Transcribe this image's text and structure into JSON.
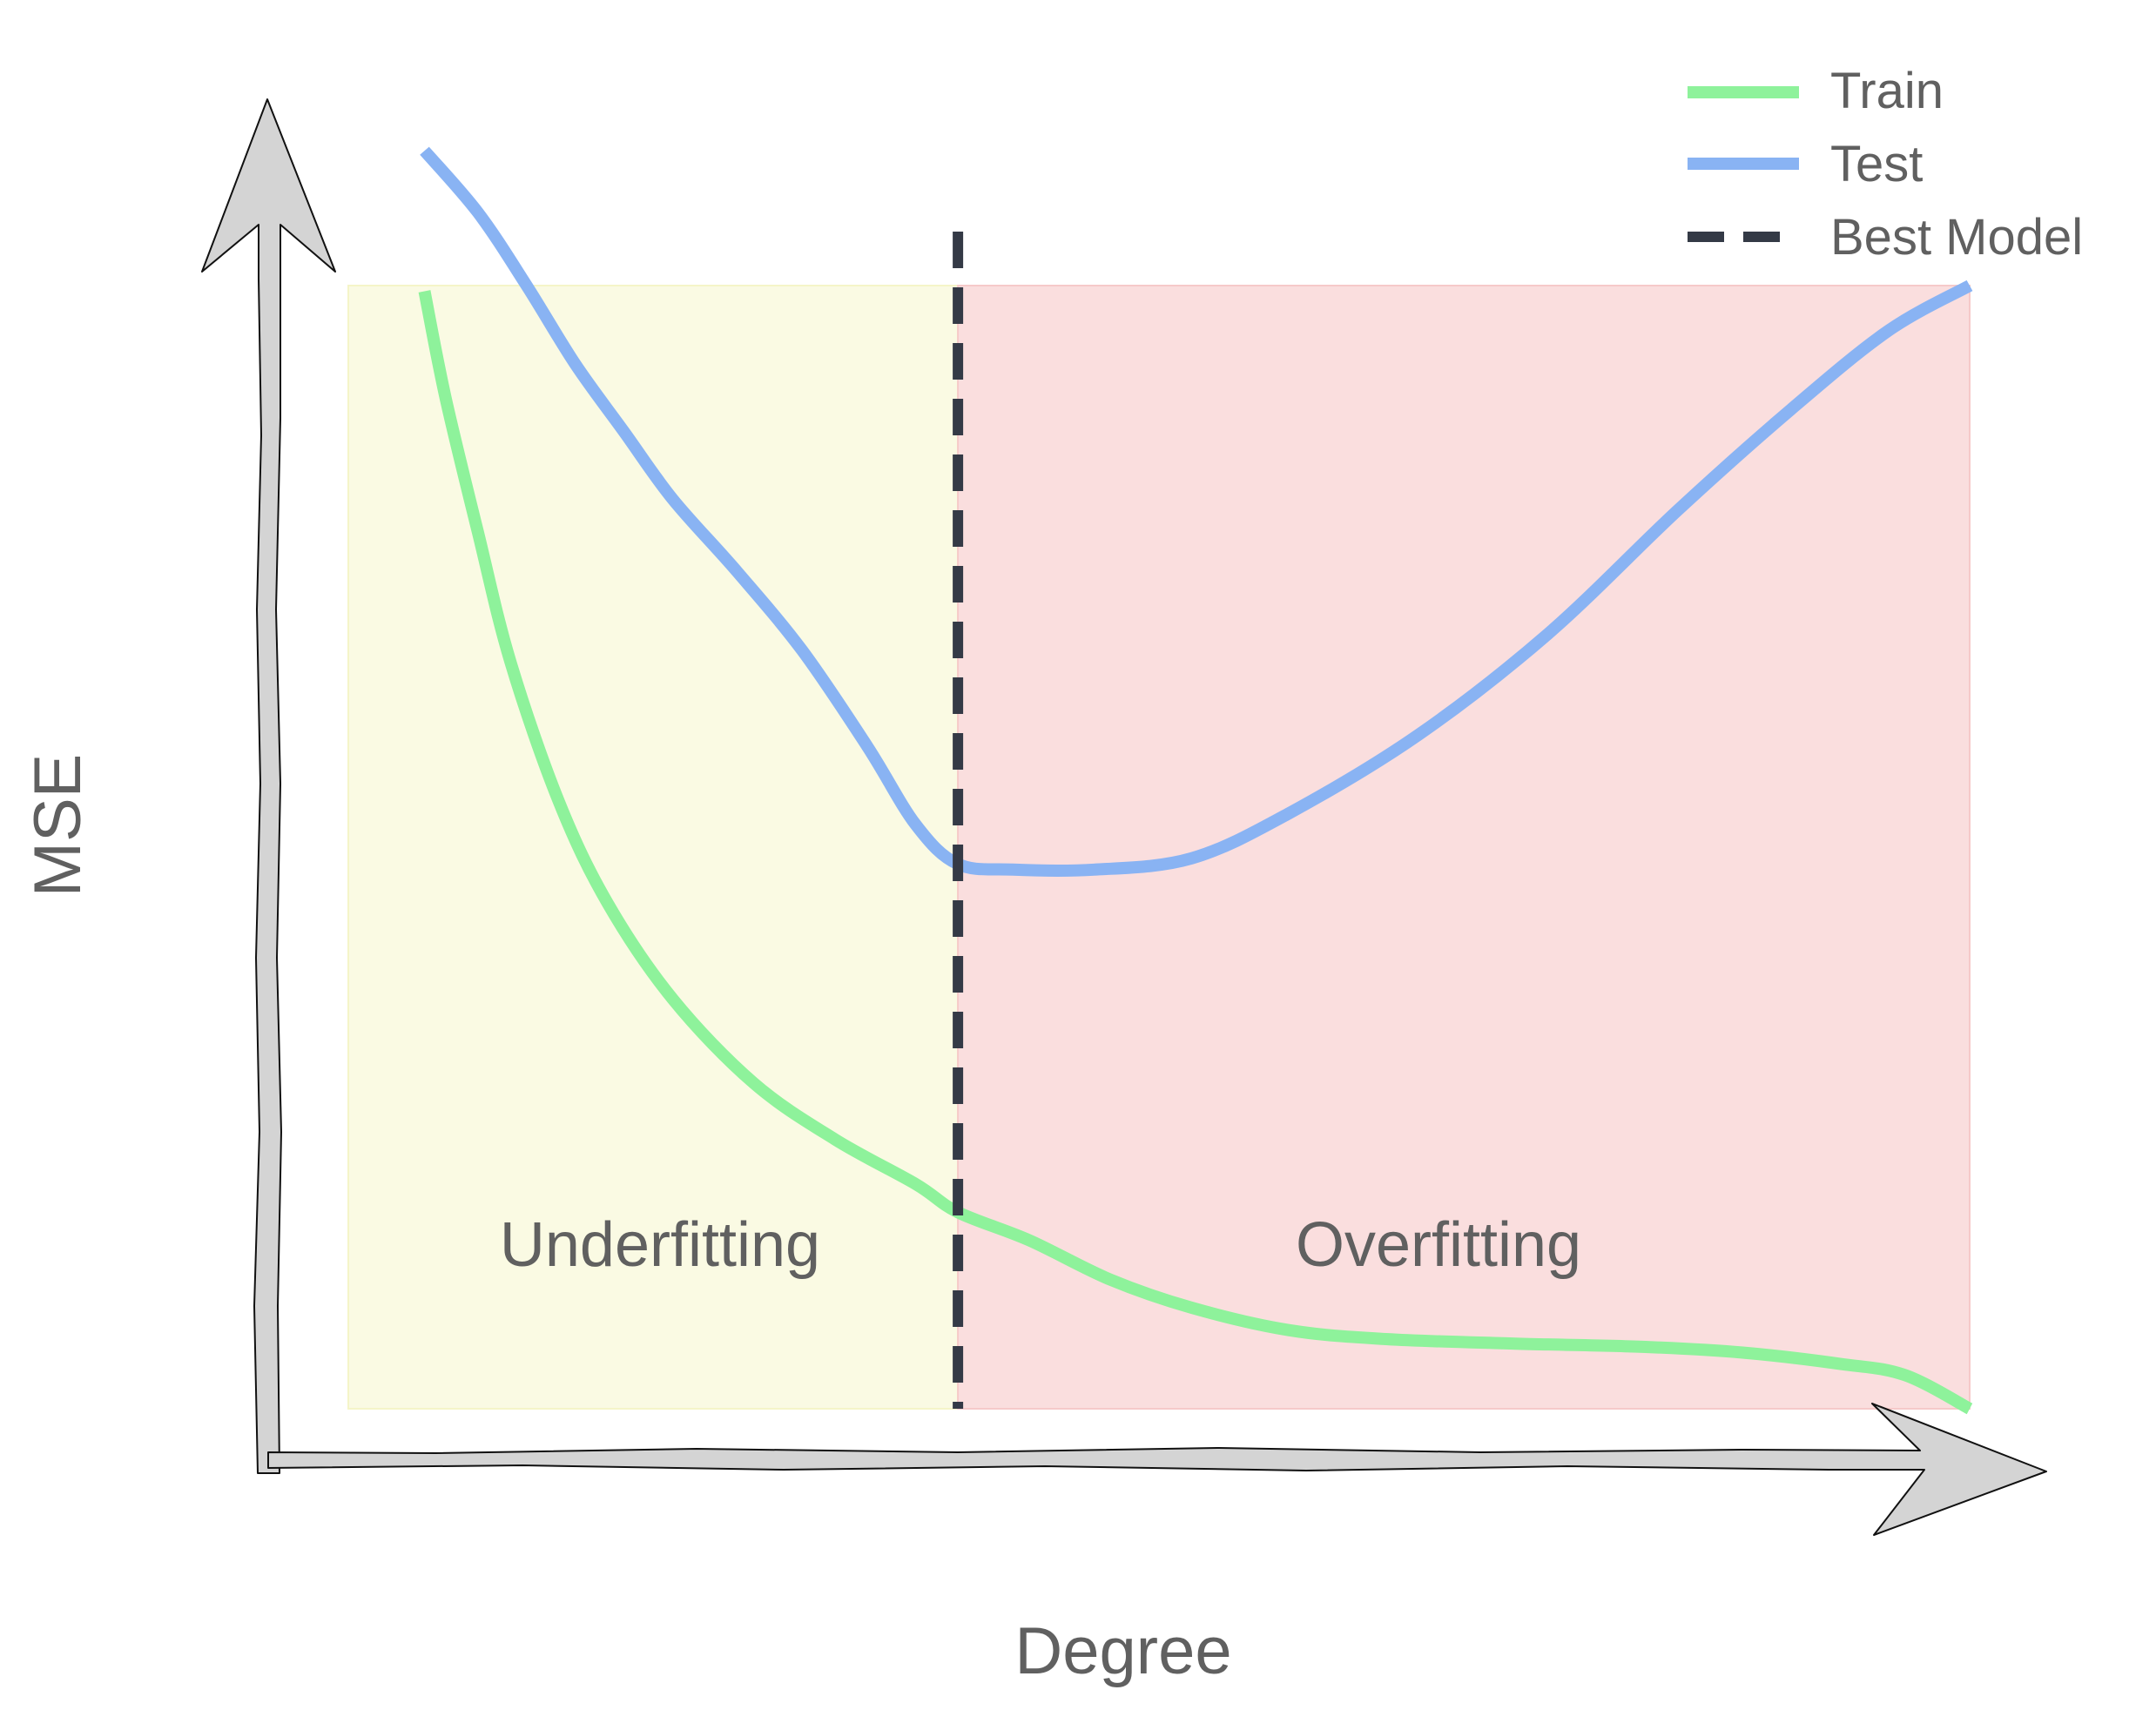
{
  "chart_data": {
    "type": "line",
    "title": "",
    "xlabel": "Degree",
    "ylabel": "MSE",
    "x_ticks_shown": false,
    "y_ticks_shown": false,
    "grid": false,
    "legend_position": "top-right",
    "regions": [
      {
        "label": "Underfitting",
        "x_start": 0,
        "x_end": 0.376,
        "color": "#fafae3"
      },
      {
        "label": "Overfitting",
        "x_start": 0.376,
        "x_end": 1,
        "color": "#fadede"
      }
    ],
    "best_model": {
      "label": "Best Model",
      "x": 0.376,
      "color": "#343a46",
      "style": "dashed"
    },
    "series": [
      {
        "name": "Train",
        "color": "#8ef29b",
        "x": [
          0.047,
          0.06,
          0.08,
          0.1,
          0.13,
          0.16,
          0.2,
          0.25,
          0.3,
          0.35,
          0.376,
          0.42,
          0.47,
          0.52,
          0.58,
          0.64,
          0.72,
          0.8,
          0.86,
          0.92,
          0.96,
          1.0
        ],
        "y": [
          0.995,
          0.9,
          0.78,
          0.665,
          0.54,
          0.45,
          0.365,
          0.29,
          0.24,
          0.2,
          0.175,
          0.15,
          0.115,
          0.09,
          0.07,
          0.062,
          0.058,
          0.055,
          0.05,
          0.04,
          0.03,
          0.0
        ]
      },
      {
        "name": "Test",
        "color": "#89b3f3",
        "x": [
          0.047,
          0.08,
          0.11,
          0.14,
          0.17,
          0.2,
          0.24,
          0.28,
          0.32,
          0.35,
          0.376,
          0.41,
          0.46,
          0.52,
          0.58,
          0.66,
          0.74,
          0.82,
          0.89,
          0.95,
          1.0
        ],
        "y": [
          1.12,
          1.065,
          1.0,
          0.93,
          0.87,
          0.81,
          0.745,
          0.675,
          0.59,
          0.52,
          0.485,
          0.48,
          0.48,
          0.49,
          0.53,
          0.6,
          0.69,
          0.8,
          0.89,
          0.96,
          1.0
        ]
      }
    ],
    "legend": [
      "Train",
      "Test",
      "Best Model"
    ],
    "annotations": [
      "Underfitting",
      "Overfitting"
    ]
  }
}
